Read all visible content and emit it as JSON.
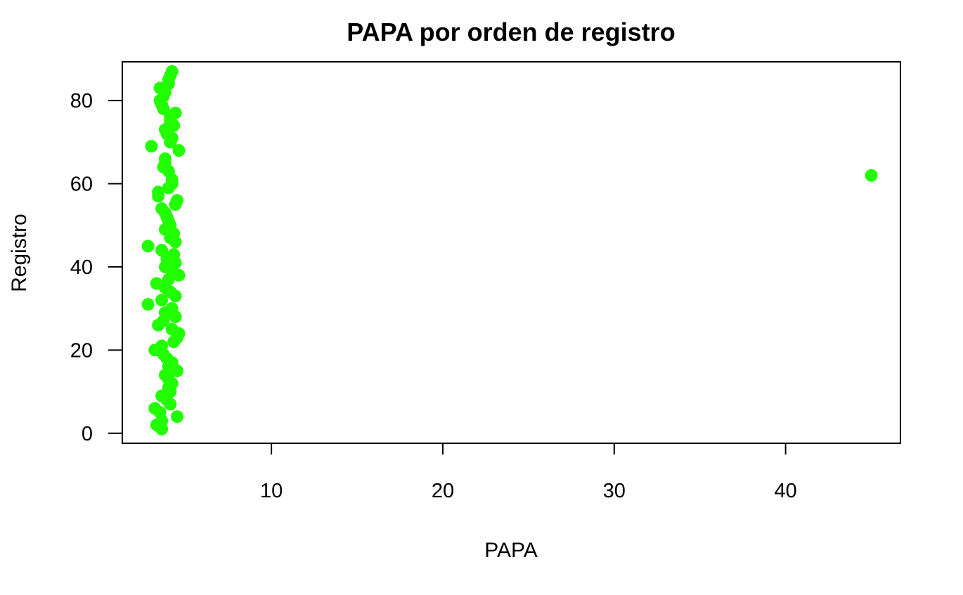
{
  "chart_data": {
    "type": "scatter",
    "title": "PAPA por orden de registro",
    "xlabel": "PAPA",
    "ylabel": "Registro",
    "x_ticks": [
      10,
      20,
      30,
      40
    ],
    "y_ticks": [
      0,
      20,
      40,
      60,
      80
    ],
    "xlim": [
      1.3,
      46.7
    ],
    "ylim": [
      -2.4,
      89.3
    ],
    "marker_color": "#22FF00",
    "grid": false,
    "legend": "none",
    "points": [
      {
        "x": 3.6,
        "y": 1
      },
      {
        "x": 3.3,
        "y": 2
      },
      {
        "x": 3.6,
        "y": 3
      },
      {
        "x": 4.5,
        "y": 4
      },
      {
        "x": 3.5,
        "y": 5
      },
      {
        "x": 3.2,
        "y": 6
      },
      {
        "x": 4.1,
        "y": 7
      },
      {
        "x": 3.9,
        "y": 8
      },
      {
        "x": 3.6,
        "y": 9
      },
      {
        "x": 4.1,
        "y": 10
      },
      {
        "x": 4.0,
        "y": 11
      },
      {
        "x": 4.2,
        "y": 12
      },
      {
        "x": 4.0,
        "y": 13
      },
      {
        "x": 3.8,
        "y": 14
      },
      {
        "x": 4.5,
        "y": 15
      },
      {
        "x": 4.0,
        "y": 16
      },
      {
        "x": 4.2,
        "y": 17
      },
      {
        "x": 3.9,
        "y": 18
      },
      {
        "x": 3.7,
        "y": 19
      },
      {
        "x": 3.2,
        "y": 20
      },
      {
        "x": 3.6,
        "y": 21
      },
      {
        "x": 4.3,
        "y": 22
      },
      {
        "x": 4.5,
        "y": 23
      },
      {
        "x": 4.6,
        "y": 24
      },
      {
        "x": 4.2,
        "y": 25
      },
      {
        "x": 3.4,
        "y": 26
      },
      {
        "x": 3.7,
        "y": 27
      },
      {
        "x": 4.4,
        "y": 28
      },
      {
        "x": 3.8,
        "y": 29
      },
      {
        "x": 4.2,
        "y": 30
      },
      {
        "x": 2.8,
        "y": 31
      },
      {
        "x": 3.6,
        "y": 32
      },
      {
        "x": 4.4,
        "y": 33
      },
      {
        "x": 4.1,
        "y": 34
      },
      {
        "x": 3.8,
        "y": 35
      },
      {
        "x": 3.3,
        "y": 36
      },
      {
        "x": 4.0,
        "y": 37
      },
      {
        "x": 4.6,
        "y": 38
      },
      {
        "x": 4.2,
        "y": 39
      },
      {
        "x": 3.8,
        "y": 40
      },
      {
        "x": 4.4,
        "y": 41
      },
      {
        "x": 3.9,
        "y": 42
      },
      {
        "x": 4.3,
        "y": 43
      },
      {
        "x": 3.6,
        "y": 44
      },
      {
        "x": 2.8,
        "y": 45
      },
      {
        "x": 4.4,
        "y": 46
      },
      {
        "x": 4.1,
        "y": 47
      },
      {
        "x": 4.3,
        "y": 48
      },
      {
        "x": 3.8,
        "y": 49
      },
      {
        "x": 4.1,
        "y": 50
      },
      {
        "x": 4.0,
        "y": 51
      },
      {
        "x": 3.9,
        "y": 52
      },
      {
        "x": 3.8,
        "y": 53
      },
      {
        "x": 3.6,
        "y": 54
      },
      {
        "x": 4.4,
        "y": 55
      },
      {
        "x": 4.5,
        "y": 56
      },
      {
        "x": 3.4,
        "y": 57
      },
      {
        "x": 3.4,
        "y": 58
      },
      {
        "x": 4.0,
        "y": 59
      },
      {
        "x": 4.2,
        "y": 60
      },
      {
        "x": 4.2,
        "y": 61
      },
      {
        "x": 45.0,
        "y": 62
      },
      {
        "x": 4.0,
        "y": 63
      },
      {
        "x": 3.7,
        "y": 64
      },
      {
        "x": 3.8,
        "y": 65
      },
      {
        "x": 3.8,
        "y": 66
      },
      {
        "x": 4.6,
        "y": 68
      },
      {
        "x": 3.0,
        "y": 69
      },
      {
        "x": 4.1,
        "y": 70
      },
      {
        "x": 4.2,
        "y": 71
      },
      {
        "x": 3.9,
        "y": 72
      },
      {
        "x": 3.8,
        "y": 73
      },
      {
        "x": 4.3,
        "y": 74
      },
      {
        "x": 4.1,
        "y": 75
      },
      {
        "x": 4.1,
        "y": 76
      },
      {
        "x": 4.4,
        "y": 77
      },
      {
        "x": 3.7,
        "y": 78
      },
      {
        "x": 3.6,
        "y": 79
      },
      {
        "x": 3.5,
        "y": 80
      },
      {
        "x": 3.7,
        "y": 81
      },
      {
        "x": 3.8,
        "y": 82
      },
      {
        "x": 3.5,
        "y": 83
      },
      {
        "x": 4.0,
        "y": 84
      },
      {
        "x": 4.0,
        "y": 85
      },
      {
        "x": 4.1,
        "y": 86
      },
      {
        "x": 4.2,
        "y": 87
      }
    ]
  }
}
